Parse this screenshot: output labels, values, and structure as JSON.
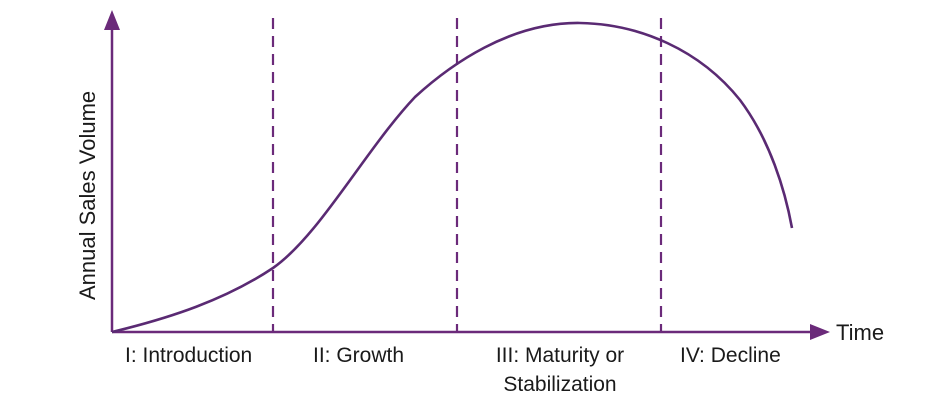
{
  "diagram": {
    "y_axis_label": "Annual Sales Volume",
    "x_axis_label": "Time",
    "stages": [
      {
        "lines": [
          "I: Introduction"
        ]
      },
      {
        "lines": [
          "II: Growth"
        ]
      },
      {
        "lines": [
          "III: Maturity or",
          "Stabilization"
        ]
      },
      {
        "lines": [
          "IV: Decline"
        ]
      }
    ],
    "colors": {
      "axis": "#6b2a7a",
      "curve": "#5a2a73",
      "text": "#1a1a1a"
    }
  }
}
